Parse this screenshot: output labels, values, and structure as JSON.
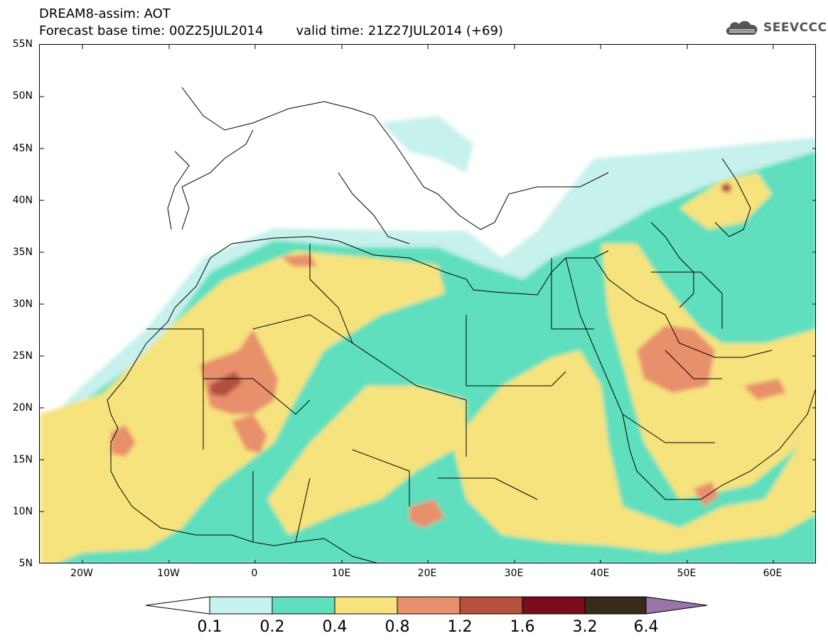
{
  "header": {
    "title_line1": "DREAM8-assim: AOT",
    "base_time_label": "Forecast base time: 00Z25JUL2014",
    "valid_time_label": "valid time: 21Z27JUL2014 (+69)"
  },
  "logo": {
    "text": "SEEVCCC",
    "icon": "cloud-icon"
  },
  "map": {
    "lat_labels": [
      "55N",
      "50N",
      "45N",
      "40N",
      "35N",
      "30N",
      "25N",
      "20N",
      "15N",
      "10N",
      "5N"
    ],
    "lon_labels": [
      "20W",
      "10W",
      "0",
      "10E",
      "20E",
      "30E",
      "40E",
      "50E",
      "60E"
    ],
    "colors": {
      "c01": "#c6f1ec",
      "c02": "#5fdfbd",
      "c04": "#f6e37d",
      "c08": "#e88f6c",
      "c12": "#b4503c",
      "c16": "#7a0c1e",
      "c32": "#3a2a1a",
      "c64": "#9b74a8"
    }
  },
  "colorbar": {
    "labels": [
      "0.1",
      "0.2",
      "0.4",
      "0.8",
      "1.2",
      "1.6",
      "3.2",
      "6.4"
    ]
  }
}
